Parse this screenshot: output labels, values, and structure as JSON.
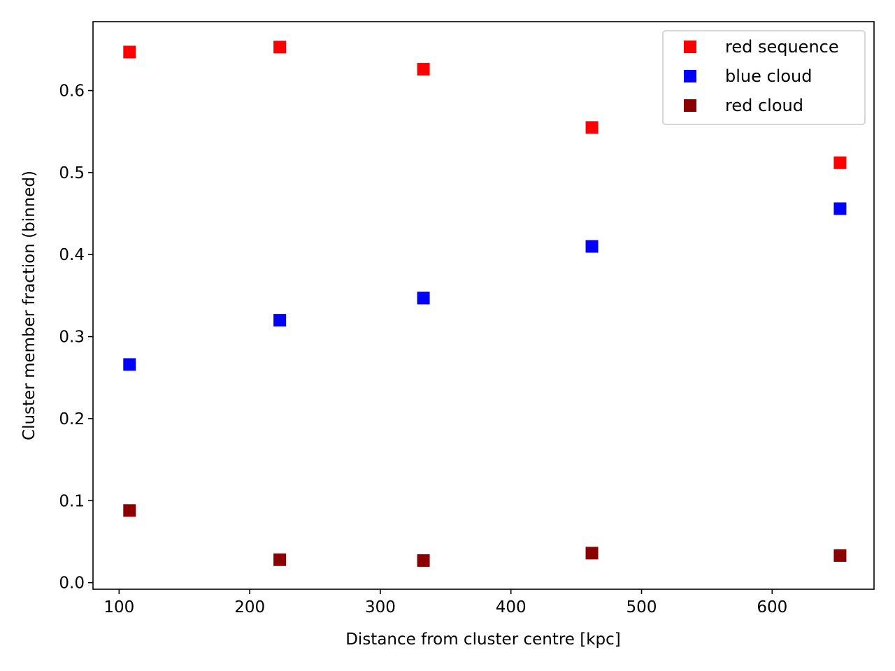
{
  "chart_data": {
    "type": "scatter",
    "title": "",
    "xlabel": "Distance from cluster centre [kpc]",
    "ylabel": "Cluster member fraction (binned)",
    "xlim": [
      80,
      678
    ],
    "ylim": [
      -0.008,
      0.684
    ],
    "xticks": [
      100,
      200,
      300,
      400,
      500,
      600
    ],
    "yticks": [
      0.0,
      0.1,
      0.2,
      0.3,
      0.4,
      0.5,
      0.6
    ],
    "xtick_labels": [
      "100",
      "200",
      "300",
      "400",
      "500",
      "600"
    ],
    "ytick_labels": [
      "0.0",
      "0.1",
      "0.2",
      "0.3",
      "0.4",
      "0.5",
      "0.6"
    ],
    "grid": false,
    "legend": "top-right",
    "x": [
      108,
      223,
      333,
      462,
      652
    ],
    "series": [
      {
        "name": "red sequence",
        "color": "#ff0000",
        "marker": "square",
        "values": [
          0.647,
          0.653,
          0.626,
          0.555,
          0.512
        ]
      },
      {
        "name": "blue cloud",
        "color": "#0000ff",
        "marker": "square",
        "values": [
          0.266,
          0.32,
          0.347,
          0.41,
          0.456
        ]
      },
      {
        "name": "red cloud",
        "color": "#8b0000",
        "marker": "square",
        "values": [
          0.088,
          0.028,
          0.027,
          0.036,
          0.033
        ]
      }
    ]
  }
}
